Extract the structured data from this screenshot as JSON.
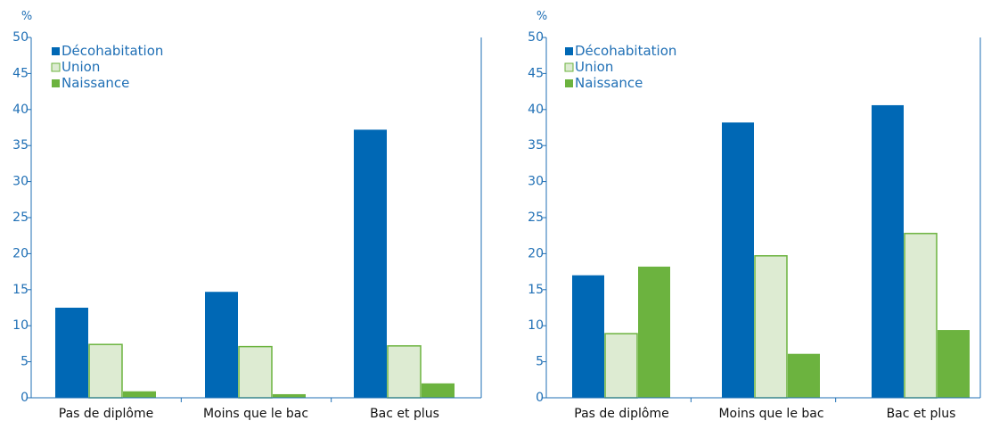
{
  "colors": {
    "axis": "#1f6fb5",
    "text": "#1f6fb5",
    "decohabitation": "#0068b5",
    "union_fill": "#ddebd2",
    "union_stroke": "#6cb33f",
    "naissance": "#6cb33f"
  },
  "chart_data": [
    {
      "type": "bar",
      "title": "",
      "ylabel": "%",
      "ylim": [
        0,
        50
      ],
      "yticks": [
        0,
        5,
        10,
        15,
        20,
        25,
        30,
        35,
        40,
        45,
        50
      ],
      "ytick_labels": [
        "0",
        "5",
        "10",
        "15",
        "20",
        "25",
        "30",
        "35",
        "40",
        "45",
        "50"
      ],
      "categories": [
        "Pas de diplôme",
        "Moins que le bac",
        "Bac et plus"
      ],
      "legend_position": "top-left",
      "grid": false,
      "series": [
        {
          "name": "Décohabitation",
          "values": [
            12.5,
            14.7,
            37.2
          ]
        },
        {
          "name": "Union",
          "values": [
            7.4,
            7.1,
            7.2
          ]
        },
        {
          "name": "Naissance",
          "values": [
            0.9,
            0.5,
            2.0
          ]
        }
      ]
    },
    {
      "type": "bar",
      "title": "",
      "ylabel": "%",
      "ylim": [
        0,
        50
      ],
      "yticks": [
        0,
        5,
        10,
        15,
        20,
        25,
        30,
        35,
        40,
        45,
        50
      ],
      "ytick_labels": [
        "0",
        "5",
        "10",
        "15",
        "20",
        "25",
        "30",
        "35",
        "40",
        "45",
        "50"
      ],
      "categories": [
        "Pas de diplôme",
        "Moins que le bac",
        "Bac et plus"
      ],
      "legend_position": "top-left",
      "grid": false,
      "series": [
        {
          "name": "Décohabitation",
          "values": [
            17.0,
            38.2,
            40.6
          ]
        },
        {
          "name": "Union",
          "values": [
            8.9,
            19.7,
            22.8
          ]
        },
        {
          "name": "Naissance",
          "values": [
            18.2,
            6.1,
            9.4
          ]
        }
      ]
    }
  ]
}
